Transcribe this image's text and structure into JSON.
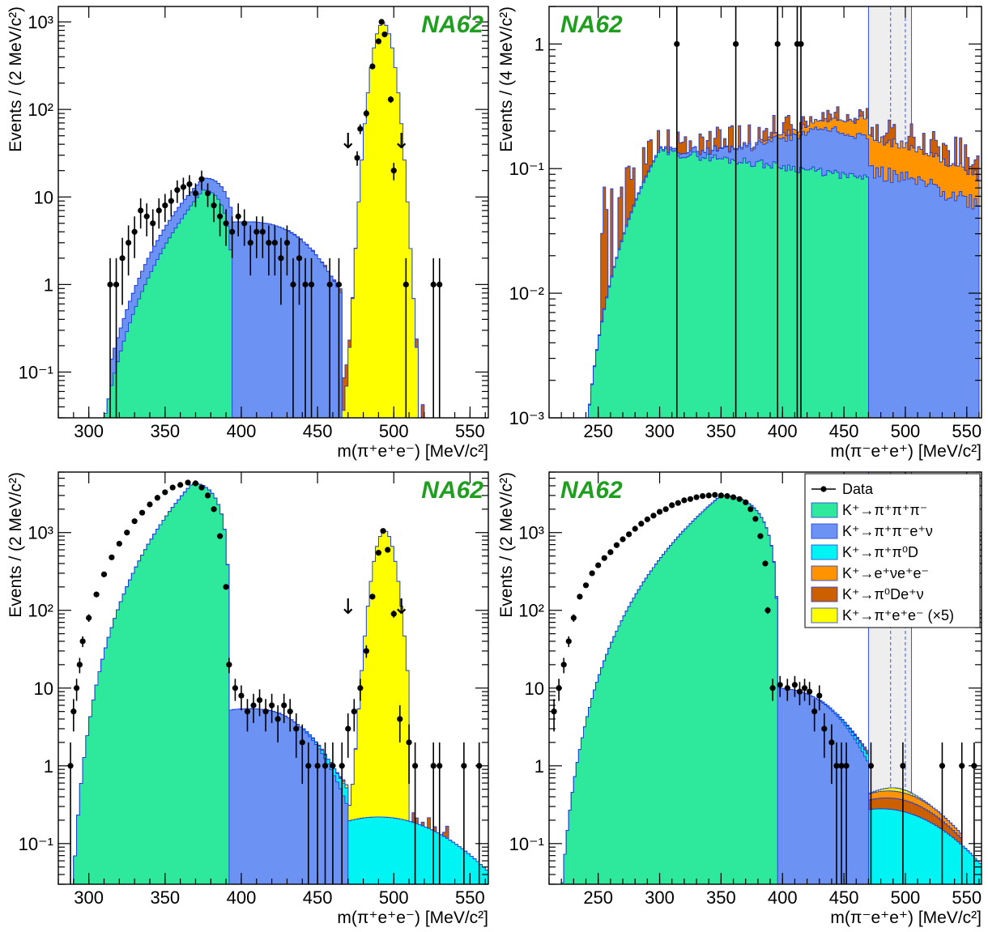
{
  "brand": "NA62",
  "colors": {
    "K3pi": "#2ee89b",
    "Ke4": "#6c93f4",
    "pipiD": "#00f4f4",
    "enuee": "#ff9400",
    "pi0Denu": "#cc5f00",
    "signal": "#ffff00",
    "outline": "#1d3ddc",
    "data": "#000000",
    "band": "#eeeeee"
  },
  "legend": [
    {
      "key": "data",
      "label": "Data",
      "marker": "point"
    },
    {
      "key": "K3pi",
      "label": "K⁺→π⁺π⁺π⁻"
    },
    {
      "key": "Ke4",
      "label": "K⁺→π⁺π⁻e⁺ν"
    },
    {
      "key": "pipiD",
      "label": "K⁺→π⁺π⁰D"
    },
    {
      "key": "enuee",
      "label": "K⁺→e⁺νe⁺e⁻"
    },
    {
      "key": "pi0Denu",
      "label": "K⁺→π⁰De⁺ν"
    },
    {
      "key": "signal",
      "label": "K⁺→π⁺e⁺e⁻ (×5)"
    }
  ],
  "chart_data": [
    {
      "type": "area",
      "panel": "top-left",
      "ylabel": "Events / (2 MeV/c²)",
      "xlabel": "m(π⁺e⁺e⁻) [MeV/c²]",
      "xlim": [
        280,
        562
      ],
      "ylim": [
        0.03,
        1500
      ],
      "y_scale": "log",
      "x_ticks": [
        300,
        350,
        400,
        450,
        500,
        550
      ],
      "y_ticks": [
        {
          "v": 0.1,
          "label": "10⁻¹"
        },
        {
          "v": 1,
          "label": "1"
        },
        {
          "v": 10,
          "label": "10"
        },
        {
          "v": 100,
          "label": "10²"
        },
        {
          "v": 1000,
          "label": "10³"
        }
      ],
      "arrows": [
        470,
        505
      ],
      "series": [
        {
          "key": "K3pi",
          "shape": "k3pi",
          "peak_x": 375,
          "peak": 12,
          "lo": 290,
          "hi": 395
        },
        {
          "key": "Ke4",
          "shape": "ke4",
          "center": 402,
          "peak": 5.2,
          "width": 38,
          "lo": 315,
          "hi": 465
        },
        {
          "key": "signal",
          "shape": "gauss",
          "center": 493,
          "peak": 980,
          "width": 5.2,
          "tail": 2.5,
          "lo": 455,
          "hi": 515
        },
        {
          "key": "pi0Denu",
          "shape": "sparse",
          "level": 0.06,
          "lo": 430,
          "hi": 520,
          "seed": 3
        }
      ],
      "data_points": [
        [
          314,
          1
        ],
        [
          318,
          1
        ],
        [
          322,
          2
        ],
        [
          326,
          3
        ],
        [
          330,
          4
        ],
        [
          334,
          7
        ],
        [
          338,
          6
        ],
        [
          342,
          5
        ],
        [
          346,
          7
        ],
        [
          350,
          8
        ],
        [
          354,
          9
        ],
        [
          358,
          12
        ],
        [
          362,
          13
        ],
        [
          366,
          14
        ],
        [
          370,
          11
        ],
        [
          374,
          16
        ],
        [
          378,
          11
        ],
        [
          382,
          8
        ],
        [
          386,
          6
        ],
        [
          390,
          5
        ],
        [
          394,
          4
        ],
        [
          398,
          6
        ],
        [
          402,
          5
        ],
        [
          406,
          3
        ],
        [
          410,
          4
        ],
        [
          414,
          4
        ],
        [
          418,
          3
        ],
        [
          422,
          3
        ],
        [
          426,
          2
        ],
        [
          430,
          3
        ],
        [
          434,
          1
        ],
        [
          438,
          2
        ],
        [
          442,
          1
        ],
        [
          446,
          1
        ],
        [
          458,
          1
        ],
        [
          464,
          1
        ],
        [
          476,
          28
        ],
        [
          478,
          60
        ],
        [
          482,
          90
        ],
        [
          486,
          310
        ],
        [
          490,
          600
        ],
        [
          492,
          1000
        ],
        [
          494,
          720
        ],
        [
          498,
          130
        ],
        [
          500,
          20
        ],
        [
          508,
          1
        ],
        [
          526,
          1
        ],
        [
          530,
          1
        ]
      ]
    },
    {
      "type": "area",
      "panel": "top-right",
      "ylabel": "Events / (4 MeV/c²)",
      "xlabel": "m(π⁻e⁺e⁺) [MeV/c²]",
      "xlim": [
        210,
        562
      ],
      "ylim": [
        0.001,
        2
      ],
      "y_scale": "log",
      "x_ticks": [
        250,
        300,
        350,
        400,
        450,
        500,
        550
      ],
      "y_ticks": [
        {
          "v": 0.001,
          "label": "10⁻³"
        },
        {
          "v": 0.01,
          "label": "10⁻²"
        },
        {
          "v": 0.1,
          "label": "10⁻¹"
        },
        {
          "v": 1,
          "label": "1"
        }
      ],
      "signal_band": [
        470,
        505
      ],
      "band_lines": [
        488,
        500
      ],
      "series": [
        {
          "key": "K3pi",
          "shape": "wide",
          "peak_x": 300,
          "peak": 0.14,
          "lo": 228,
          "hi": 470,
          "tail": 0.09
        },
        {
          "key": "Ke4",
          "shape": "rise",
          "center": 430,
          "peak": 0.12,
          "lo": 230,
          "hi": 560,
          "tail": 0.04
        },
        {
          "key": "enuee",
          "shape": "rise",
          "center": 470,
          "peak": 0.08,
          "lo": 300,
          "hi": 560,
          "tail": 0.03
        },
        {
          "key": "pi0Denu",
          "shape": "sparse",
          "level": 0.06,
          "lo": 250,
          "hi": 560,
          "seed": 11
        }
      ],
      "data_points": [
        [
          314,
          1
        ],
        [
          362,
          1
        ],
        [
          396,
          1
        ],
        [
          412,
          1
        ],
        [
          415,
          1
        ]
      ]
    },
    {
      "type": "area",
      "panel": "bottom-left",
      "ylabel": "Events / (2 MeV/c²)",
      "xlabel": "m(π⁺e⁺e⁻) [MeV/c²]",
      "xlim": [
        280,
        562
      ],
      "ylim": [
        0.03,
        6000
      ],
      "y_scale": "log",
      "x_ticks": [
        300,
        350,
        400,
        450,
        500,
        550
      ],
      "y_ticks": [
        {
          "v": 0.1,
          "label": "10⁻¹"
        },
        {
          "v": 1,
          "label": "1"
        },
        {
          "v": 10,
          "label": "10"
        },
        {
          "v": 100,
          "label": "10²"
        },
        {
          "v": 1000,
          "label": "10³"
        }
      ],
      "arrows": [
        470,
        505
      ],
      "series": [
        {
          "key": "K3pi",
          "shape": "k3pi",
          "peak_x": 368,
          "peak": 4300,
          "lo": 285,
          "hi": 392
        },
        {
          "key": "Ke4",
          "shape": "ke4",
          "center": 405,
          "peak": 5.4,
          "width": 33,
          "lo": 305,
          "hi": 470
        },
        {
          "key": "pipiD",
          "shape": "bump",
          "center": 490,
          "peak": 0.22,
          "width": 40,
          "lo": 440,
          "hi": 562
        },
        {
          "key": "signal",
          "shape": "gauss",
          "center": 494,
          "peak": 1050,
          "width": 5.2,
          "tail": 2.5,
          "lo": 465,
          "hi": 510
        },
        {
          "key": "pi0Denu",
          "shape": "sparse",
          "level": 0.05,
          "lo": 400,
          "hi": 540,
          "seed": 7
        }
      ],
      "data_points": [
        [
          288,
          1
        ],
        [
          290,
          5
        ],
        [
          292,
          10
        ],
        [
          294,
          20
        ],
        [
          296,
          40
        ],
        [
          300,
          80
        ],
        [
          305,
          160
        ],
        [
          310,
          290
        ],
        [
          315,
          480
        ],
        [
          320,
          720
        ],
        [
          325,
          1000
        ],
        [
          330,
          1400
        ],
        [
          335,
          1800
        ],
        [
          340,
          2300
        ],
        [
          345,
          2800
        ],
        [
          350,
          3300
        ],
        [
          355,
          3800
        ],
        [
          360,
          4100
        ],
        [
          365,
          4400
        ],
        [
          370,
          4300
        ],
        [
          374,
          3800
        ],
        [
          378,
          3000
        ],
        [
          382,
          2000
        ],
        [
          386,
          900
        ],
        [
          390,
          200
        ],
        [
          392,
          20
        ],
        [
          396,
          10
        ],
        [
          400,
          8
        ],
        [
          404,
          5
        ],
        [
          408,
          6
        ],
        [
          412,
          7
        ],
        [
          416,
          5
        ],
        [
          420,
          6
        ],
        [
          424,
          4
        ],
        [
          428,
          6
        ],
        [
          432,
          5
        ],
        [
          436,
          3
        ],
        [
          440,
          2
        ],
        [
          444,
          1
        ],
        [
          450,
          1
        ],
        [
          455,
          1
        ],
        [
          460,
          1
        ],
        [
          466,
          1
        ],
        [
          470,
          3
        ],
        [
          474,
          5
        ],
        [
          478,
          10
        ],
        [
          482,
          30
        ],
        [
          486,
          150
        ],
        [
          490,
          550
        ],
        [
          493,
          1050
        ],
        [
          496,
          600
        ],
        [
          500,
          90
        ],
        [
          504,
          4
        ],
        [
          510,
          2
        ],
        [
          514,
          1
        ],
        [
          526,
          1
        ],
        [
          530,
          1
        ],
        [
          546,
          1
        ],
        [
          556,
          1
        ]
      ]
    },
    {
      "type": "area",
      "panel": "bottom-right",
      "ylabel": "Events / (2 MeV/c²)",
      "xlabel": "m(π⁻e⁺e⁺) [MeV/c²]",
      "xlim": [
        210,
        562
      ],
      "ylim": [
        0.03,
        6000
      ],
      "y_scale": "log",
      "x_ticks": [
        250,
        300,
        350,
        400,
        450,
        500,
        550
      ],
      "y_ticks": [
        {
          "v": 0.1,
          "label": "10⁻¹"
        },
        {
          "v": 1,
          "label": "1"
        },
        {
          "v": 10,
          "label": "10"
        },
        {
          "v": 100,
          "label": "10²"
        },
        {
          "v": 1000,
          "label": "10³"
        }
      ],
      "signal_band": [
        470,
        505
      ],
      "band_lines": [
        488,
        500
      ],
      "legend": "top-right",
      "series": [
        {
          "key": "K3pi",
          "shape": "k3pi",
          "peak_x": 350,
          "peak": 3000,
          "lo": 212,
          "hi": 396
        },
        {
          "key": "Ke4",
          "shape": "ke4",
          "center": 390,
          "peak": 10,
          "width": 45,
          "lo": 240,
          "hi": 470
        },
        {
          "key": "pipiD",
          "shape": "bump",
          "center": 480,
          "peak": 0.28,
          "width": 45,
          "lo": 430,
          "hi": 562
        },
        {
          "key": "pi0Denu",
          "shape": "bump",
          "center": 490,
          "peak": 0.11,
          "width": 30,
          "lo": 445,
          "hi": 545
        },
        {
          "key": "enuee",
          "shape": "bump",
          "center": 490,
          "peak": 0.09,
          "width": 30,
          "lo": 445,
          "hi": 545
        },
        {
          "key": "signal",
          "shape": "bump",
          "center": 493,
          "peak": 0.05,
          "width": 12,
          "lo": 470,
          "hi": 520
        }
      ],
      "data_points": [
        [
          214,
          5
        ],
        [
          218,
          10
        ],
        [
          222,
          20
        ],
        [
          226,
          40
        ],
        [
          230,
          80
        ],
        [
          235,
          150
        ],
        [
          240,
          210
        ],
        [
          245,
          300
        ],
        [
          250,
          380
        ],
        [
          255,
          470
        ],
        [
          260,
          560
        ],
        [
          265,
          690
        ],
        [
          270,
          820
        ],
        [
          275,
          950
        ],
        [
          280,
          1120
        ],
        [
          285,
          1300
        ],
        [
          290,
          1480
        ],
        [
          295,
          1650
        ],
        [
          300,
          1850
        ],
        [
          305,
          2000
        ],
        [
          310,
          2250
        ],
        [
          315,
          2400
        ],
        [
          320,
          2600
        ],
        [
          325,
          2700
        ],
        [
          330,
          2850
        ],
        [
          335,
          2950
        ],
        [
          340,
          3000
        ],
        [
          345,
          3050
        ],
        [
          350,
          3000
        ],
        [
          355,
          2950
        ],
        [
          360,
          2850
        ],
        [
          365,
          2700
        ],
        [
          370,
          2450
        ],
        [
          374,
          2000
        ],
        [
          378,
          1500
        ],
        [
          382,
          900
        ],
        [
          386,
          400
        ],
        [
          388,
          100
        ],
        [
          392,
          10
        ],
        [
          398,
          11
        ],
        [
          404,
          10
        ],
        [
          410,
          11
        ],
        [
          414,
          9
        ],
        [
          418,
          10
        ],
        [
          422,
          9
        ],
        [
          426,
          5
        ],
        [
          430,
          8
        ],
        [
          434,
          3
        ],
        [
          440,
          2
        ],
        [
          444,
          1
        ],
        [
          448,
          1
        ],
        [
          452,
          1
        ],
        [
          472,
          1
        ],
        [
          498,
          1
        ],
        [
          530,
          1
        ],
        [
          546,
          1
        ],
        [
          556,
          1
        ]
      ]
    }
  ]
}
